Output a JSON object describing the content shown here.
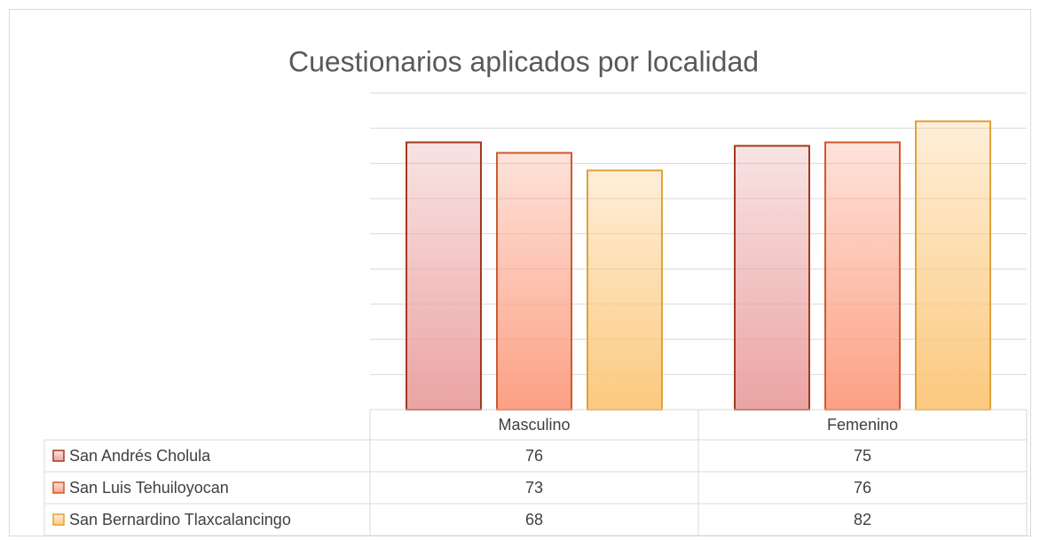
{
  "chart_data": {
    "type": "bar",
    "title": "Cuestionarios aplicados por localidad",
    "categories": [
      "Masculino",
      "Femenino"
    ],
    "series": [
      {
        "name": "San Andrés Cholula",
        "color": "#eba3a3",
        "edge_color": "#a23a1e",
        "values": [
          76,
          75
        ]
      },
      {
        "name": "San Luis Tehuiloyocan",
        "color": "#fca084",
        "edge_color": "#cf5a2c",
        "values": [
          73,
          76
        ]
      },
      {
        "name": "San Bernardino Tlaxcalancingo",
        "color": "#fcc97e",
        "edge_color": "#dfa23a",
        "values": [
          68,
          82
        ]
      }
    ],
    "ylim": [
      0,
      90
    ],
    "yticks": [
      0,
      10,
      20,
      30,
      40,
      50,
      60,
      70,
      80,
      90
    ],
    "grid": true,
    "data_table": true
  }
}
